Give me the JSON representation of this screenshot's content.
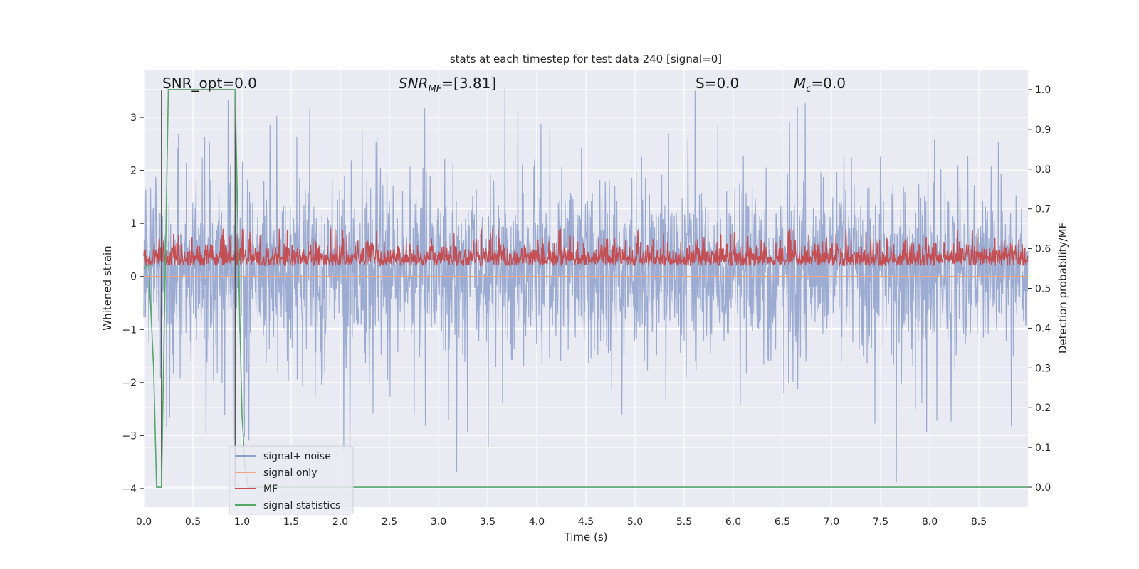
{
  "chart_data": {
    "type": "line",
    "title": "stats at each timestep for test data 240 [signal=0]",
    "xlabel": "Time (s)",
    "ylabel_left": "Whitened strain",
    "ylabel_right": "Detection probability/MF",
    "xlim": [
      0.0,
      9.0
    ],
    "ylim_left": [
      -4.35,
      3.9
    ],
    "ylim_right": [
      -0.05,
      1.05
    ],
    "x_ticks": [
      "0.0",
      "0.5",
      "1.0",
      "1.5",
      "2.0",
      "2.5",
      "3.0",
      "3.5",
      "4.0",
      "4.5",
      "5.0",
      "5.5",
      "6.0",
      "6.5",
      "7.0",
      "7.5",
      "8.0",
      "8.5"
    ],
    "y_ticks_left": [
      "−4",
      "−3",
      "−2",
      "−1",
      "0",
      "1",
      "2",
      "3"
    ],
    "y_ticks_right": [
      "0.0",
      "0.1",
      "0.2",
      "0.3",
      "0.4",
      "0.5",
      "0.6",
      "0.7",
      "0.8",
      "0.9",
      "1.0"
    ],
    "grid": true,
    "annotations": [
      {
        "id": "snr-opt",
        "text": "SNR_opt=0.0"
      },
      {
        "id": "snr-mf",
        "text": "SNR_MF=[3.81]"
      },
      {
        "id": "s",
        "text": "S=0.0"
      },
      {
        "id": "mc",
        "text": "M_c=0.0"
      }
    ],
    "legend": {
      "placement": "lower-left",
      "entries": [
        "signal+ noise",
        "signal only",
        "MF",
        "signal statistics"
      ]
    },
    "series": [
      {
        "name": "signal+ noise",
        "axis": "left",
        "color": "#8da0cb",
        "description_value_range": [
          -4.0,
          3.55
        ],
        "typical_band": [
          -1.7,
          2.0
        ]
      },
      {
        "name": "signal only",
        "axis": "left",
        "color": "#f4a582",
        "values_constant": 0.0
      },
      {
        "name": "MF",
        "axis": "left",
        "color": "#c44e52",
        "typical_band": [
          0.0,
          0.9
        ]
      },
      {
        "name": "signal statistics",
        "axis": "right",
        "color": "#55a868",
        "x": [
          0.0,
          0.05,
          0.1,
          0.13,
          0.18,
          0.25,
          0.3,
          0.93,
          0.97,
          1.0,
          1.03,
          1.06,
          1.1,
          9.0
        ],
        "y": [
          0.55,
          0.56,
          0.3,
          0.0,
          0.0,
          1.0,
          1.0,
          1.0,
          0.5,
          0.18,
          0.05,
          0.0,
          0.0,
          0.0
        ]
      }
    ],
    "vertical_markers_x": [
      0.18,
      0.93
    ]
  }
}
